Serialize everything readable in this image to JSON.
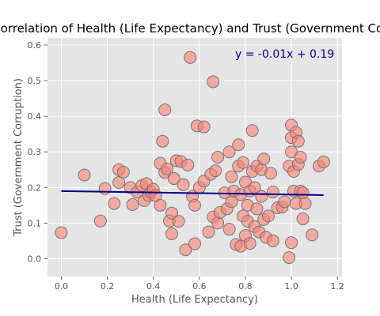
{
  "chart_data": {
    "type": "scatter",
    "title": "Correlation of Health (Life Expectancy) and Trust (Government Corruption)",
    "xlabel": "Health (Life Expectancy)",
    "ylabel": "Trust (Government Corruption)",
    "xlim": [
      -0.06,
      1.22
    ],
    "ylim": [
      -0.05,
      0.62
    ],
    "xticks": [
      "0.0",
      "0.2",
      "0.4",
      "0.6",
      "0.8",
      "1.0",
      "1.2"
    ],
    "yticks": [
      "0.0",
      "0.1",
      "0.2",
      "0.3",
      "0.4",
      "0.5",
      "0.6"
    ],
    "grid": true,
    "annotation": "y = -0.01x + 0.19",
    "regression": {
      "slope": -0.01,
      "intercept": 0.19,
      "x_range": [
        0.0,
        1.14
      ]
    },
    "colors": {
      "point_fill": "#fa8072",
      "point_edge": "#777777",
      "line": "#00008b",
      "plot_bg": "#e5e5e5",
      "grid": "#ffffff"
    },
    "points": [
      {
        "x": 0.0,
        "y": 0.073
      },
      {
        "x": 0.1,
        "y": 0.235
      },
      {
        "x": 0.17,
        "y": 0.106
      },
      {
        "x": 0.19,
        "y": 0.197
      },
      {
        "x": 0.23,
        "y": 0.155
      },
      {
        "x": 0.25,
        "y": 0.25
      },
      {
        "x": 0.25,
        "y": 0.214
      },
      {
        "x": 0.27,
        "y": 0.243
      },
      {
        "x": 0.3,
        "y": 0.2
      },
      {
        "x": 0.31,
        "y": 0.152
      },
      {
        "x": 0.33,
        "y": 0.187
      },
      {
        "x": 0.35,
        "y": 0.205
      },
      {
        "x": 0.36,
        "y": 0.163
      },
      {
        "x": 0.37,
        "y": 0.211
      },
      {
        "x": 0.38,
        "y": 0.177
      },
      {
        "x": 0.39,
        "y": 0.187
      },
      {
        "x": 0.4,
        "y": 0.195
      },
      {
        "x": 0.41,
        "y": 0.177
      },
      {
        "x": 0.43,
        "y": 0.268
      },
      {
        "x": 0.43,
        "y": 0.15
      },
      {
        "x": 0.44,
        "y": 0.33
      },
      {
        "x": 0.45,
        "y": 0.418
      },
      {
        "x": 0.45,
        "y": 0.242
      },
      {
        "x": 0.46,
        "y": 0.252
      },
      {
        "x": 0.47,
        "y": 0.106
      },
      {
        "x": 0.48,
        "y": 0.128
      },
      {
        "x": 0.48,
        "y": 0.07
      },
      {
        "x": 0.49,
        "y": 0.225
      },
      {
        "x": 0.5,
        "y": 0.275
      },
      {
        "x": 0.51,
        "y": 0.105
      },
      {
        "x": 0.52,
        "y": 0.273
      },
      {
        "x": 0.53,
        "y": 0.208
      },
      {
        "x": 0.54,
        "y": 0.025
      },
      {
        "x": 0.55,
        "y": 0.263
      },
      {
        "x": 0.56,
        "y": 0.565
      },
      {
        "x": 0.57,
        "y": 0.175
      },
      {
        "x": 0.58,
        "y": 0.042
      },
      {
        "x": 0.58,
        "y": 0.15
      },
      {
        "x": 0.59,
        "y": 0.373
      },
      {
        "x": 0.6,
        "y": 0.2
      },
      {
        "x": 0.62,
        "y": 0.37
      },
      {
        "x": 0.62,
        "y": 0.218
      },
      {
        "x": 0.64,
        "y": 0.075
      },
      {
        "x": 0.65,
        "y": 0.237
      },
      {
        "x": 0.66,
        "y": 0.497
      },
      {
        "x": 0.66,
        "y": 0.117
      },
      {
        "x": 0.67,
        "y": 0.247
      },
      {
        "x": 0.68,
        "y": 0.285
      },
      {
        "x": 0.68,
        "y": 0.1
      },
      {
        "x": 0.69,
        "y": 0.13
      },
      {
        "x": 0.71,
        "y": 0.185
      },
      {
        "x": 0.72,
        "y": 0.14
      },
      {
        "x": 0.73,
        "y": 0.3
      },
      {
        "x": 0.73,
        "y": 0.083
      },
      {
        "x": 0.74,
        "y": 0.16
      },
      {
        "x": 0.74,
        "y": 0.23
      },
      {
        "x": 0.75,
        "y": 0.19
      },
      {
        "x": 0.76,
        "y": 0.04
      },
      {
        "x": 0.77,
        "y": 0.32
      },
      {
        "x": 0.77,
        "y": 0.26
      },
      {
        "x": 0.78,
        "y": 0.035
      },
      {
        "x": 0.78,
        "y": 0.18
      },
      {
        "x": 0.79,
        "y": 0.12
      },
      {
        "x": 0.79,
        "y": 0.27
      },
      {
        "x": 0.8,
        "y": 0.065
      },
      {
        "x": 0.8,
        "y": 0.215
      },
      {
        "x": 0.81,
        "y": 0.15
      },
      {
        "x": 0.81,
        "y": 0.105
      },
      {
        "x": 0.82,
        "y": 0.043
      },
      {
        "x": 0.82,
        "y": 0.19
      },
      {
        "x": 0.83,
        "y": 0.36
      },
      {
        "x": 0.83,
        "y": 0.245
      },
      {
        "x": 0.84,
        "y": 0.09
      },
      {
        "x": 0.84,
        "y": 0.2
      },
      {
        "x": 0.85,
        "y": 0.26
      },
      {
        "x": 0.85,
        "y": 0.14
      },
      {
        "x": 0.86,
        "y": 0.075
      },
      {
        "x": 0.87,
        "y": 0.175
      },
      {
        "x": 0.87,
        "y": 0.25
      },
      {
        "x": 0.88,
        "y": 0.11
      },
      {
        "x": 0.88,
        "y": 0.28
      },
      {
        "x": 0.89,
        "y": 0.06
      },
      {
        "x": 0.9,
        "y": 0.12
      },
      {
        "x": 0.91,
        "y": 0.24
      },
      {
        "x": 0.92,
        "y": 0.187
      },
      {
        "x": 0.92,
        "y": 0.05
      },
      {
        "x": 0.94,
        "y": 0.143
      },
      {
        "x": 0.96,
        "y": 0.145
      },
      {
        "x": 0.97,
        "y": 0.16
      },
      {
        "x": 0.99,
        "y": 0.26
      },
      {
        "x": 0.99,
        "y": 0.003
      },
      {
        "x": 1.0,
        "y": 0.375
      },
      {
        "x": 1.0,
        "y": 0.34
      },
      {
        "x": 1.0,
        "y": 0.3
      },
      {
        "x": 1.0,
        "y": 0.045
      },
      {
        "x": 1.01,
        "y": 0.19
      },
      {
        "x": 1.01,
        "y": 0.245
      },
      {
        "x": 1.02,
        "y": 0.355
      },
      {
        "x": 1.02,
        "y": 0.155
      },
      {
        "x": 1.03,
        "y": 0.33
      },
      {
        "x": 1.03,
        "y": 0.265
      },
      {
        "x": 1.04,
        "y": 0.285
      },
      {
        "x": 1.04,
        "y": 0.19
      },
      {
        "x": 1.05,
        "y": 0.112
      },
      {
        "x": 1.05,
        "y": 0.185
      },
      {
        "x": 1.06,
        "y": 0.155
      },
      {
        "x": 1.09,
        "y": 0.067
      },
      {
        "x": 1.12,
        "y": 0.26
      },
      {
        "x": 1.14,
        "y": 0.272
      }
    ]
  }
}
